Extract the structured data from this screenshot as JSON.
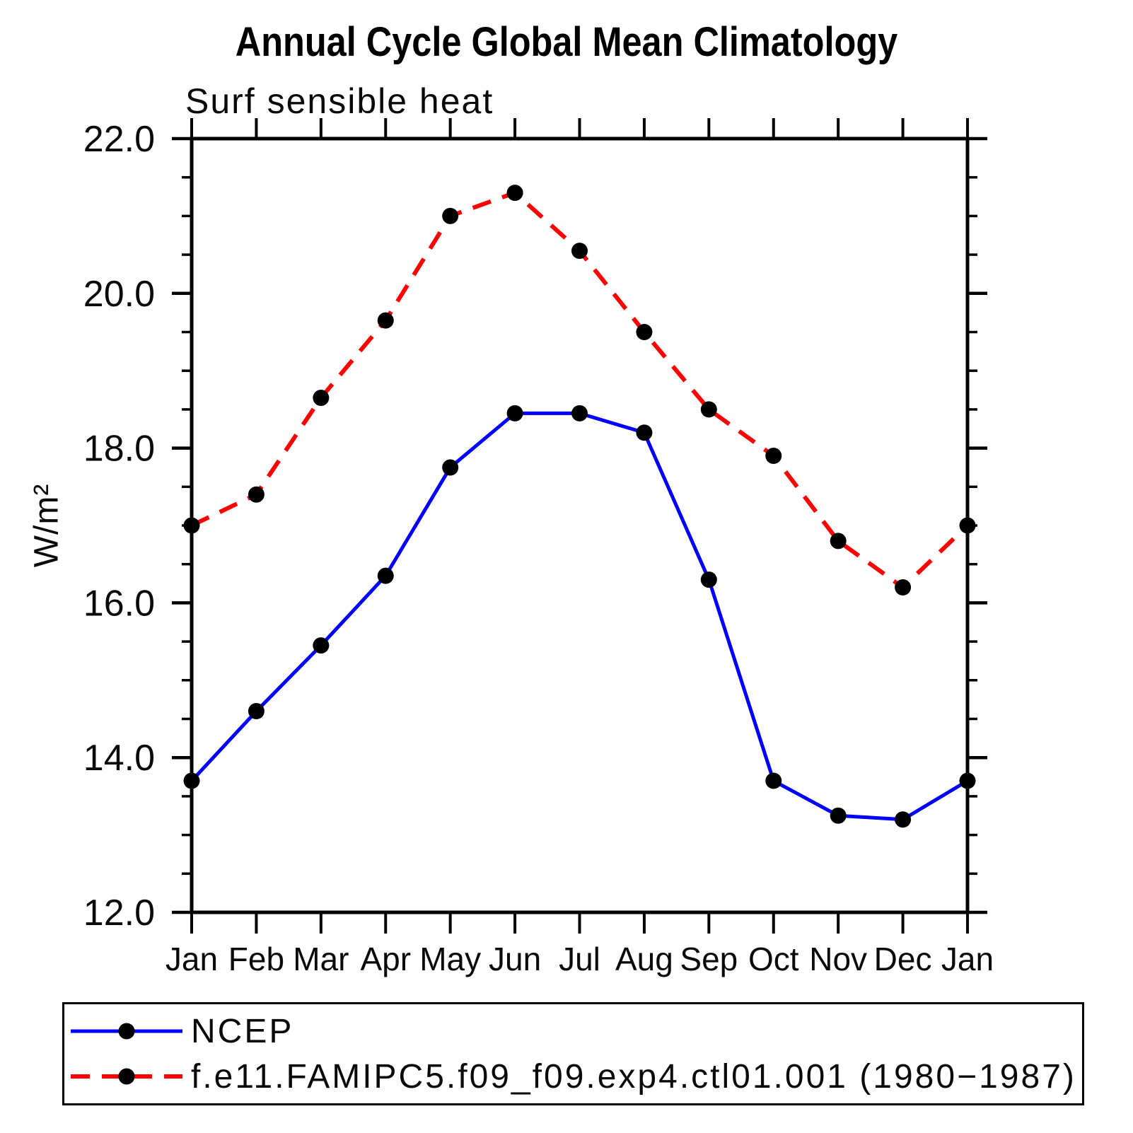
{
  "chart_data": {
    "type": "line",
    "title": "Annual Cycle Global Mean Climatology",
    "subtitle": "Surf sensible heat",
    "ylabel": "W/m²",
    "categories": [
      "Jan",
      "Feb",
      "Mar",
      "Apr",
      "May",
      "Jun",
      "Jul",
      "Aug",
      "Sep",
      "Oct",
      "Nov",
      "Dec",
      "Jan"
    ],
    "series": [
      {
        "name": "NCEP",
        "color": "#0000ff",
        "line_style": "solid",
        "marker": "filled-circle",
        "marker_color": "#000000",
        "values": [
          13.7,
          14.6,
          15.45,
          16.35,
          17.75,
          18.45,
          18.45,
          18.2,
          16.3,
          13.7,
          13.25,
          13.2,
          13.7
        ]
      },
      {
        "name": "f.e11.FAMIPC5.f09_f09.exp4.ctl01.001 (1980−1987)",
        "color": "#ff0000",
        "line_style": "dashed",
        "marker": "filled-circle",
        "marker_color": "#000000",
        "values": [
          17.0,
          17.4,
          18.65,
          19.65,
          21.0,
          21.3,
          20.55,
          19.5,
          18.5,
          17.9,
          16.8,
          16.2,
          17.0
        ]
      }
    ],
    "ylim": [
      12.0,
      22.0
    ],
    "ytick_major": [
      12.0,
      14.0,
      16.0,
      18.0,
      20.0,
      22.0
    ],
    "ytick_labels": [
      "12.0",
      "14.0",
      "16.0",
      "18.0",
      "20.0",
      "22.0"
    ],
    "ytick_minor_step": 0.5,
    "grid": false,
    "axis_color": "#000000",
    "legend": {
      "position": "bottom-left-box",
      "items": [
        {
          "label": "NCEP",
          "color": "#0000ff",
          "line_style": "solid"
        },
        {
          "label": "f.e11.FAMIPC5.f09_f09.exp4.ctl01.001 (1980−1987)",
          "color": "#ff0000",
          "line_style": "dashed"
        }
      ]
    }
  }
}
